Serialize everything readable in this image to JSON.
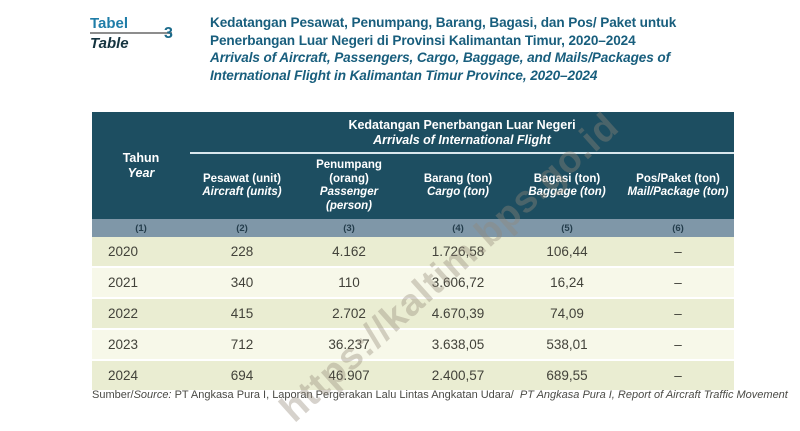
{
  "label": {
    "tabel": "Tabel",
    "table": "Table",
    "number": "3"
  },
  "title": {
    "id_line1": "Kedatangan Pesawat, Penumpang, Barang, Bagasi, dan Pos/ Paket untuk",
    "id_line2": "Penerbangan Luar Negeri di Provinsi Kalimantan Timur, 2020–2024",
    "en_line1": "Arrivals of Aircraft, Passengers, Cargo, Baggage, and Mails/Packages of",
    "en_line2": "International Flight in Kalimantan Timur Province, 2020–2024"
  },
  "table": {
    "year_header": {
      "id": "Tahun",
      "en": "Year"
    },
    "group_header": {
      "id": "Kedatangan Penerbangan Luar Negeri",
      "en": "Arrivals of International Flight"
    },
    "columns": [
      {
        "id": "Pesawat (unit)",
        "en": "Aircraft (units)"
      },
      {
        "id": "Penumpang (orang)",
        "en": "Passenger (person)"
      },
      {
        "id": "Barang (ton)",
        "en": "Cargo (ton)"
      },
      {
        "id": "Bagasi (ton)",
        "en": "Baggage (ton)"
      },
      {
        "id": "Pos/Paket (ton)",
        "en": "Mail/Package (ton)"
      }
    ],
    "column_numbers": [
      "(1)",
      "(2)",
      "(3)",
      "(4)",
      "(5)",
      "(6)"
    ],
    "rows": [
      {
        "year": "2020",
        "pesawat": "228",
        "penumpang": "4.162",
        "barang": "1.726,58",
        "bagasi": "106,44",
        "pos": "–"
      },
      {
        "year": "2021",
        "pesawat": "340",
        "penumpang": "110",
        "barang": "3.606,72",
        "bagasi": "16,24",
        "pos": "–"
      },
      {
        "year": "2022",
        "pesawat": "415",
        "penumpang": "2.702",
        "barang": "4.670,39",
        "bagasi": "74,09",
        "pos": "–"
      },
      {
        "year": "2023",
        "pesawat": "712",
        "penumpang": "36.237",
        "barang": "3.638,05",
        "bagasi": "538,01",
        "pos": "–"
      },
      {
        "year": "2024",
        "pesawat": "694",
        "penumpang": "46.907",
        "barang": "2.400,57",
        "bagasi": "689,55",
        "pos": "–"
      }
    ]
  },
  "source": {
    "label_id": "Sumber/",
    "label_en": "Source:",
    "text_id": "PT Angkasa Pura I, Laporan Pergerakan Lalu Lintas Angkatan Udara/",
    "text_en": "PT Angkasa Pura I, Report of Aircraft Traffic Movement"
  },
  "watermark": "https://kaltim.bps.go.id",
  "colors": {
    "header_teal": "#1d4e61",
    "number_row_bg": "#7f97a8",
    "row_stripe_dark": "#eaedd2",
    "row_stripe_light": "#f7f8e9",
    "title_text": "#185e7d",
    "accent_teal": "#1f7da8"
  }
}
